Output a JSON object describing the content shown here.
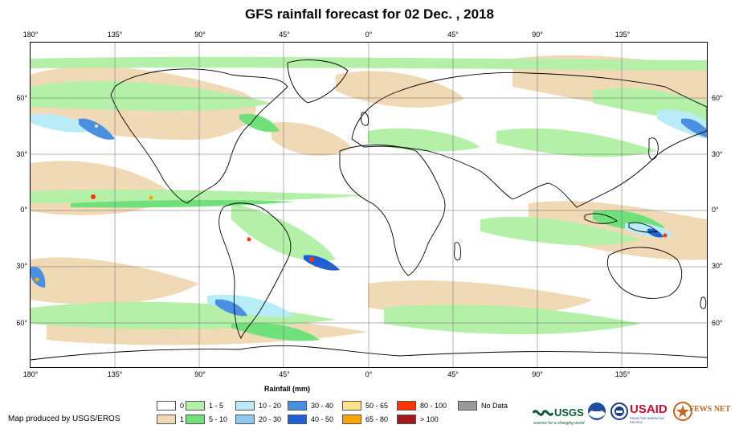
{
  "title": "GFS rainfall forecast for 02 Dec. , 2018",
  "longitude_labels": [
    "180°",
    "135°",
    "90°",
    "45°",
    "0°",
    "45°",
    "90°",
    "135°"
  ],
  "latitude_labels": [
    "60°",
    "30°",
    "0°",
    "30°",
    "60°"
  ],
  "legend": {
    "title": "Rainfall (mm)",
    "items": [
      {
        "label": "0",
        "color": "#ffffff"
      },
      {
        "label": "1",
        "color": "#f0d9b5"
      },
      {
        "label": "1 - 5",
        "color": "#b4f0a8"
      },
      {
        "label": "5 - 10",
        "color": "#6fe07a"
      },
      {
        "label": "10 - 20",
        "color": "#b8ecf7"
      },
      {
        "label": "20 - 30",
        "color": "#8cc8f2"
      },
      {
        "label": "30 - 40",
        "color": "#4a90e2"
      },
      {
        "label": "40 - 50",
        "color": "#1f5fd6"
      },
      {
        "label": "50 - 65",
        "color": "#ffe38a"
      },
      {
        "label": "65 - 80",
        "color": "#ffa500"
      },
      {
        "label": "80 - 100",
        "color": "#ff3300"
      },
      {
        "label": "> 100",
        "color": "#a01818"
      },
      {
        "label": "No Data",
        "color": "#9a9a9a"
      }
    ]
  },
  "credit": "Map produced by USGS/EROS",
  "logos": {
    "usgs": "USGS",
    "usgs_tagline": "science for a changing world",
    "usaid": "USAID",
    "usaid_tagline": "FROM THE AMERICAN PEOPLE",
    "fews": "FEWS NET"
  }
}
